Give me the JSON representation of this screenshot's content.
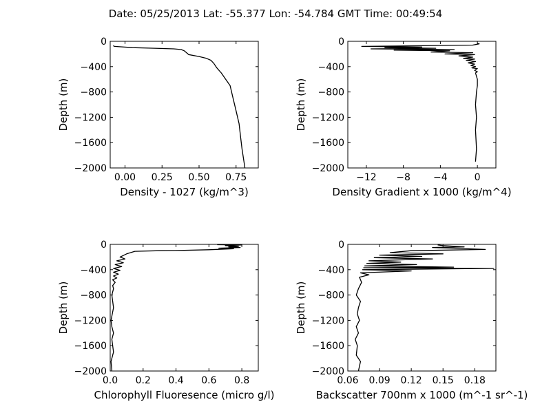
{
  "figure": {
    "title": "Date: 05/25/2013  Lat:  -55.377 Lon:  -54.784  GMT Time: 00:49:54"
  },
  "chart_data": [
    {
      "type": "line",
      "xlabel": "Density - 1027 (kg/m^3)",
      "ylabel": "Depth (m)",
      "xlim": [
        -0.1,
        0.9
      ],
      "ylim": [
        -2000,
        0
      ],
      "xticks": [
        0.0,
        0.25,
        0.5,
        0.75
      ],
      "xtick_labels": [
        "0.00",
        "0.25",
        "0.50",
        "0.75"
      ],
      "yticks": [
        0,
        -400,
        -800,
        -1200,
        -1600,
        -2000
      ],
      "ytick_labels": [
        "0",
        "−400",
        "−800",
        "−1200",
        "−1600",
        "−2000"
      ],
      "grid": false,
      "series": [
        {
          "x": [
            -0.08,
            -0.07,
            0.05,
            0.2,
            0.33,
            0.38,
            0.4,
            0.43,
            0.5,
            0.55,
            0.58,
            0.6,
            0.62,
            0.65,
            0.68,
            0.71,
            0.73,
            0.75,
            0.77,
            0.78,
            0.79,
            0.8,
            0.81
          ],
          "y": [
            -70,
            -80,
            -100,
            -110,
            -120,
            -130,
            -150,
            -210,
            -240,
            -270,
            -300,
            -350,
            -420,
            -500,
            -600,
            -700,
            -900,
            -1100,
            -1300,
            -1500,
            -1700,
            -1850,
            -2000
          ]
        }
      ]
    },
    {
      "type": "line",
      "xlabel": "Density Gradient x 1000 (kg/m^4)",
      "ylabel": "Depth (m)",
      "xlim": [
        -14,
        2
      ],
      "ylim": [
        -2000,
        0
      ],
      "xticks": [
        -12,
        -8,
        -4,
        0
      ],
      "xtick_labels": [
        "−12",
        "−8",
        "−4",
        "0"
      ],
      "yticks": [
        0,
        -400,
        -800,
        -1200,
        -1600,
        -2000
      ],
      "ytick_labels": [
        "0",
        "−400",
        "−800",
        "−1200",
        "−1600",
        "−2000"
      ],
      "grid": false,
      "series": [
        {
          "x": [
            0,
            0.2,
            -0.5,
            -12.5,
            -6,
            -10,
            -4.5,
            -11.5,
            -2.5,
            -9,
            -3,
            -5,
            -0.5,
            -3.5,
            -0.3,
            -2,
            -0.5,
            -1.5,
            -0.3,
            -1.2,
            -0.2,
            -1,
            -0.3,
            -0.7,
            -0.2,
            -0.6,
            0,
            -0.3,
            0,
            -0.2,
            0,
            0,
            -0.1,
            -0.2,
            -0.1,
            -0.2,
            -0.1,
            -0.2
          ],
          "y": [
            -30,
            -40,
            -60,
            -80,
            -90,
            -100,
            -110,
            -120,
            -130,
            -140,
            -150,
            -170,
            -180,
            -200,
            -210,
            -230,
            -250,
            -270,
            -280,
            -300,
            -320,
            -340,
            -360,
            -380,
            -400,
            -420,
            -430,
            -460,
            -480,
            -500,
            -600,
            -700,
            -800,
            -1000,
            -1200,
            -1400,
            -1700,
            -1900
          ]
        }
      ]
    },
    {
      "type": "line",
      "xlabel": "Chlorophyll Fluoresence (micro g/l)",
      "ylabel": "Depth (m)",
      "xlim": [
        0,
        0.9
      ],
      "ylim": [
        -2000,
        0
      ],
      "xticks": [
        0.0,
        0.2,
        0.4,
        0.6,
        0.8
      ],
      "xtick_labels": [
        "0.0",
        "0.2",
        "0.4",
        "0.6",
        "0.8"
      ],
      "yticks": [
        0,
        -400,
        -800,
        -1200,
        -1600,
        -2000
      ],
      "ytick_labels": [
        "0",
        "−400",
        "−800",
        "−1200",
        "−1600",
        "−2000"
      ],
      "grid": false,
      "series": [
        {
          "x": [
            0.65,
            0.8,
            0.7,
            0.78,
            0.72,
            0.79,
            0.66,
            0.75,
            0.6,
            0.45,
            0.3,
            0.15,
            0.1,
            0.06,
            0.09,
            0.04,
            0.08,
            0.03,
            0.07,
            0.02,
            0.06,
            0.02,
            0.05,
            0.02,
            0.04,
            0.015,
            0.03,
            0.015,
            0.02,
            0.01,
            0.02,
            0.005,
            0.01,
            0.02,
            0.01,
            0.02,
            0.005,
            0.01
          ],
          "y": [
            -5,
            -10,
            -20,
            -30,
            -40,
            -50,
            -60,
            -70,
            -85,
            -95,
            -100,
            -110,
            -150,
            -200,
            -230,
            -260,
            -290,
            -320,
            -350,
            -380,
            -410,
            -440,
            -470,
            -500,
            -530,
            -560,
            -600,
            -650,
            -700,
            -800,
            -1000,
            -1200,
            -1300,
            -1400,
            -1500,
            -1700,
            -1850,
            -2000
          ]
        }
      ]
    },
    {
      "type": "line",
      "xlabel": "Backscatter 700nm x 1000 (m^-1 sr^-1)",
      "ylabel": "Depth (m)",
      "xlim": [
        0.06,
        0.2
      ],
      "ylim": [
        -2000,
        0
      ],
      "xticks": [
        0.06,
        0.09,
        0.12,
        0.15,
        0.18
      ],
      "xtick_labels": [
        "0.06",
        "0.09",
        "0.12",
        "0.15",
        "0.18"
      ],
      "yticks": [
        0,
        -400,
        -800,
        -1200,
        -1600,
        -2000
      ],
      "ytick_labels": [
        "0",
        "−400",
        "−800",
        "−1200",
        "−1600",
        "−2000"
      ],
      "grid": false,
      "series": [
        {
          "x": [
            0.145,
            0.15,
            0.17,
            0.14,
            0.16,
            0.19,
            0.12,
            0.1,
            0.15,
            0.09,
            0.13,
            0.085,
            0.14,
            0.08,
            0.11,
            0.078,
            0.125,
            0.076,
            0.16,
            0.075,
            0.198,
            0.074,
            0.12,
            0.072,
            0.08,
            0.071,
            0.073,
            0.07,
            0.068,
            0.072,
            0.07,
            0.069,
            0.071,
            0.068,
            0.07,
            0.067,
            0.069,
            0.068,
            0.072,
            0.07
          ],
          "y": [
            -10,
            -20,
            -40,
            -50,
            -60,
            -80,
            -100,
            -130,
            -150,
            -170,
            -190,
            -210,
            -230,
            -260,
            -280,
            -300,
            -320,
            -340,
            -360,
            -370,
            -380,
            -400,
            -420,
            -450,
            -480,
            -520,
            -600,
            -700,
            -800,
            -900,
            -1000,
            -1100,
            -1200,
            -1300,
            -1400,
            -1500,
            -1600,
            -1750,
            -1850,
            -2000
          ]
        }
      ]
    }
  ]
}
